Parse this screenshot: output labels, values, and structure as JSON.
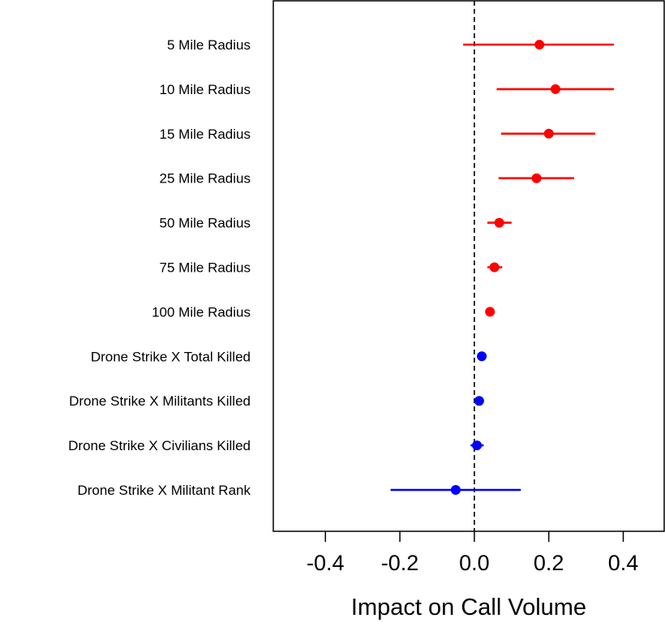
{
  "chart_data": {
    "type": "scatter",
    "subtype": "coefficient-plot",
    "title": "",
    "xlabel": "Impact on Call Volume",
    "ylabel": "",
    "xlim": [
      -0.54,
      0.51
    ],
    "xticks": [
      -0.4,
      -0.2,
      0.0,
      0.2,
      0.4
    ],
    "xtick_labels": [
      "-0.4",
      "-0.2",
      "0.0",
      "0.2",
      "0.4"
    ],
    "reference_line": {
      "x": 0,
      "style": "dashed",
      "color": "#000000"
    },
    "grid": false,
    "legend": "none",
    "points": [
      {
        "label": "5 Mile Radius",
        "estimate": 0.175,
        "lower": -0.03,
        "upper": 0.375,
        "color": "#ff0000"
      },
      {
        "label": "10 Mile Radius",
        "estimate": 0.218,
        "lower": 0.06,
        "upper": 0.375,
        "color": "#ff0000"
      },
      {
        "label": "15 Mile Radius",
        "estimate": 0.2,
        "lower": 0.072,
        "upper": 0.325,
        "color": "#ff0000"
      },
      {
        "label": "25 Mile Radius",
        "estimate": 0.167,
        "lower": 0.065,
        "upper": 0.268,
        "color": "#ff0000"
      },
      {
        "label": "50 Mile Radius",
        "estimate": 0.067,
        "lower": 0.035,
        "upper": 0.1,
        "color": "#ff0000"
      },
      {
        "label": "75 Mile Radius",
        "estimate": 0.054,
        "lower": 0.035,
        "upper": 0.075,
        "color": "#ff0000"
      },
      {
        "label": "100 Mile Radius",
        "estimate": 0.042,
        "lower": 0.032,
        "upper": 0.054,
        "color": "#ff0000"
      },
      {
        "label": "Drone Strike X Total Killed",
        "estimate": 0.02,
        "lower": 0.01,
        "upper": 0.03,
        "color": "#0000ff"
      },
      {
        "label": "Drone Strike X Militants Killed",
        "estimate": 0.013,
        "lower": 0.004,
        "upper": 0.022,
        "color": "#0000ff"
      },
      {
        "label": "Drone Strike X Civilians Killed",
        "estimate": 0.007,
        "lower": -0.01,
        "upper": 0.025,
        "color": "#0000ff"
      },
      {
        "label": "Drone Strike X Militant Rank",
        "estimate": -0.05,
        "lower": -0.225,
        "upper": 0.125,
        "color": "#0000ff"
      }
    ]
  }
}
